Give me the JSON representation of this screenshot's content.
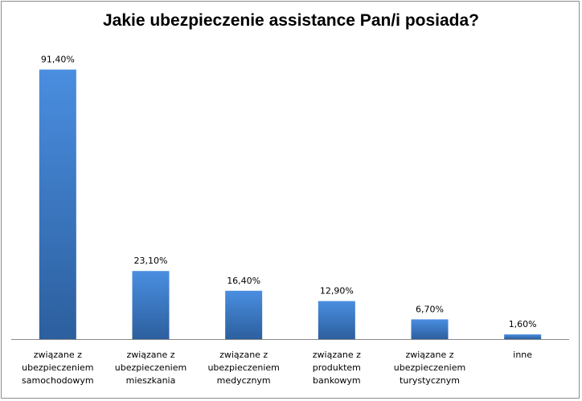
{
  "chart_data": {
    "type": "bar",
    "title": "Jakie ubezpieczenie assistance Pan/i posiada?",
    "xlabel": "",
    "ylabel": "",
    "categories": [
      [
        "związane z",
        "ubezpieczeniem",
        "samochodowym"
      ],
      [
        "związane z",
        "ubezpieczeniem",
        "mieszkania"
      ],
      [
        "związane z",
        "ubezpieczeniem",
        "medycznym"
      ],
      [
        "związane z",
        "produktem",
        "bankowym"
      ],
      [
        "związane z",
        "ubezpieczeniem",
        "turystycznym"
      ],
      [
        "inne"
      ]
    ],
    "values": [
      91.4,
      23.1,
      16.4,
      12.9,
      6.7,
      1.6
    ],
    "data_labels": [
      "91,40%",
      "23,10%",
      "16,40%",
      "12,90%",
      "6,70%",
      "1,60%"
    ],
    "ylim": [
      0,
      100
    ],
    "grid": false,
    "legend": "none",
    "colors": {
      "bar_light": "#4a8ee0",
      "bar_dark": "#2c5f9e",
      "axis": "#888888",
      "frame": "#8c8c8c"
    }
  }
}
